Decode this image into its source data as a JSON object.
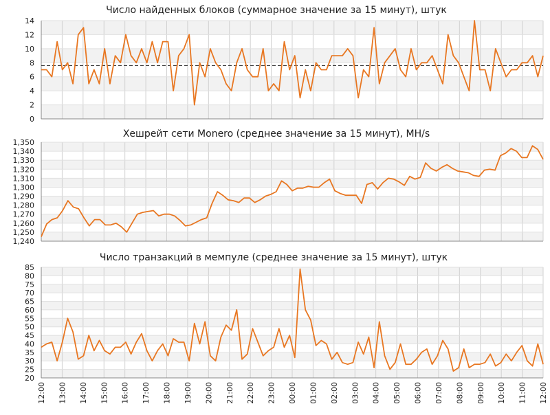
{
  "chart_data": [
    {
      "type": "line",
      "title": "Число найденных блоков (суммарное значение за 15 минут), штук",
      "ylim": [
        0,
        14
      ],
      "yticks": [
        0,
        2,
        4,
        6,
        8,
        10,
        12,
        14
      ],
      "ytick_labels": [
        "0",
        "2",
        "4",
        "6",
        "8",
        "10",
        "12",
        "14"
      ],
      "reference_line": 7.6,
      "grid": true,
      "x_domain": [
        0,
        96
      ],
      "series": [
        {
          "color": "#e87722",
          "values": [
            7,
            7,
            6,
            11,
            7,
            8,
            5,
            12,
            13,
            5,
            7,
            5,
            10,
            5,
            9,
            8,
            12,
            9,
            8,
            10,
            8,
            11,
            8,
            11,
            11,
            4,
            9,
            10,
            12,
            2,
            8,
            6,
            10,
            8,
            7,
            5,
            4,
            8,
            10,
            7,
            6,
            6,
            10,
            4,
            5,
            4,
            11,
            7,
            9,
            3,
            7,
            4,
            8,
            7,
            7,
            9,
            9,
            9,
            10,
            9,
            3,
            7,
            6,
            13,
            5,
            8,
            9,
            10,
            7,
            6,
            10,
            7,
            8,
            8,
            9,
            7,
            5,
            12,
            9,
            8,
            6,
            4,
            14,
            7,
            7,
            4,
            10,
            8,
            6,
            7,
            7,
            8,
            8,
            9,
            6,
            9
          ]
        }
      ]
    },
    {
      "type": "line",
      "title": "Хешрейт сети Monero (среднее значение за 15 минут), MH/s",
      "ylim": [
        1240,
        1350
      ],
      "yticks": [
        1240,
        1250,
        1260,
        1270,
        1280,
        1290,
        1300,
        1310,
        1320,
        1330,
        1340,
        1350
      ],
      "ytick_labels": [
        "1,240",
        "1,250",
        "1,260",
        "1,270",
        "1,280",
        "1,290",
        "1,300",
        "1,310",
        "1,320",
        "1,330",
        "1,340",
        "1,350"
      ],
      "grid": true,
      "x_domain": [
        0,
        96
      ],
      "series": [
        {
          "color": "#e87722",
          "values": [
            1245,
            1259,
            1264,
            1266,
            1274,
            1285,
            1278,
            1276,
            1266,
            1257,
            1264,
            1264,
            1258,
            1258,
            1260,
            1256,
            1250,
            1260,
            1270,
            1272,
            1273,
            1274,
            1268,
            1270,
            1270,
            1268,
            1263,
            1257,
            1258,
            1261,
            1264,
            1266,
            1282,
            1295,
            1291,
            1286,
            1285,
            1283,
            1288,
            1288,
            1283,
            1286,
            1290,
            1292,
            1295,
            1307,
            1303,
            1296,
            1299,
            1299,
            1301,
            1300,
            1300,
            1305,
            1309,
            1296,
            1293,
            1291,
            1291,
            1291,
            1282,
            1303,
            1305,
            1298,
            1305,
            1310,
            1309,
            1306,
            1302,
            1312,
            1309,
            1311,
            1327,
            1321,
            1318,
            1322,
            1325,
            1321,
            1318,
            1317,
            1316,
            1313,
            1312,
            1319,
            1320,
            1319,
            1335,
            1338,
            1343,
            1340,
            1333,
            1333,
            1346,
            1342,
            1331
          ]
        }
      ]
    },
    {
      "type": "line",
      "title": "Число транзакций в мемпуле (среднее значение за 15 минут), штук",
      "ylim": [
        20,
        85
      ],
      "yticks": [
        20,
        25,
        30,
        35,
        40,
        45,
        50,
        55,
        60,
        65,
        70,
        75,
        80,
        85
      ],
      "ytick_labels": [
        "20",
        "25",
        "30",
        "35",
        "40",
        "45",
        "50",
        "55",
        "60",
        "65",
        "70",
        "75",
        "80",
        "85"
      ],
      "grid": true,
      "x_domain": [
        0,
        96
      ],
      "xtick_labels": [
        "12:00",
        "13:00",
        "14:00",
        "15:00",
        "16:00",
        "17:00",
        "18:00",
        "19:00",
        "20:00",
        "21:00",
        "22:00",
        "23:00",
        "00:00",
        "01:00",
        "02:00",
        "03:00",
        "04:00",
        "05:00",
        "06:00",
        "07:00",
        "08:00",
        "09:00",
        "10:00",
        "11:00",
        "12:00"
      ],
      "series": [
        {
          "color": "#e87722",
          "values": [
            38,
            40,
            41,
            30,
            41,
            55,
            47,
            31,
            33,
            45,
            36,
            42,
            36,
            34,
            38,
            38,
            41,
            34,
            41,
            46,
            36,
            30,
            36,
            40,
            33,
            43,
            41,
            41,
            30,
            52,
            40,
            53,
            33,
            30,
            44,
            51,
            48,
            60,
            31,
            34,
            49,
            41,
            33,
            36,
            38,
            49,
            38,
            45,
            32,
            84,
            60,
            54,
            39,
            42,
            40,
            31,
            35,
            29,
            28,
            29,
            41,
            34,
            44,
            26,
            53,
            33,
            25,
            29,
            40,
            28,
            28,
            31,
            35,
            37,
            28,
            33,
            42,
            37,
            24,
            26,
            37,
            26,
            28,
            28,
            29,
            34,
            27,
            29,
            34,
            30,
            35,
            39,
            30,
            27,
            40,
            28
          ]
        }
      ]
    }
  ]
}
